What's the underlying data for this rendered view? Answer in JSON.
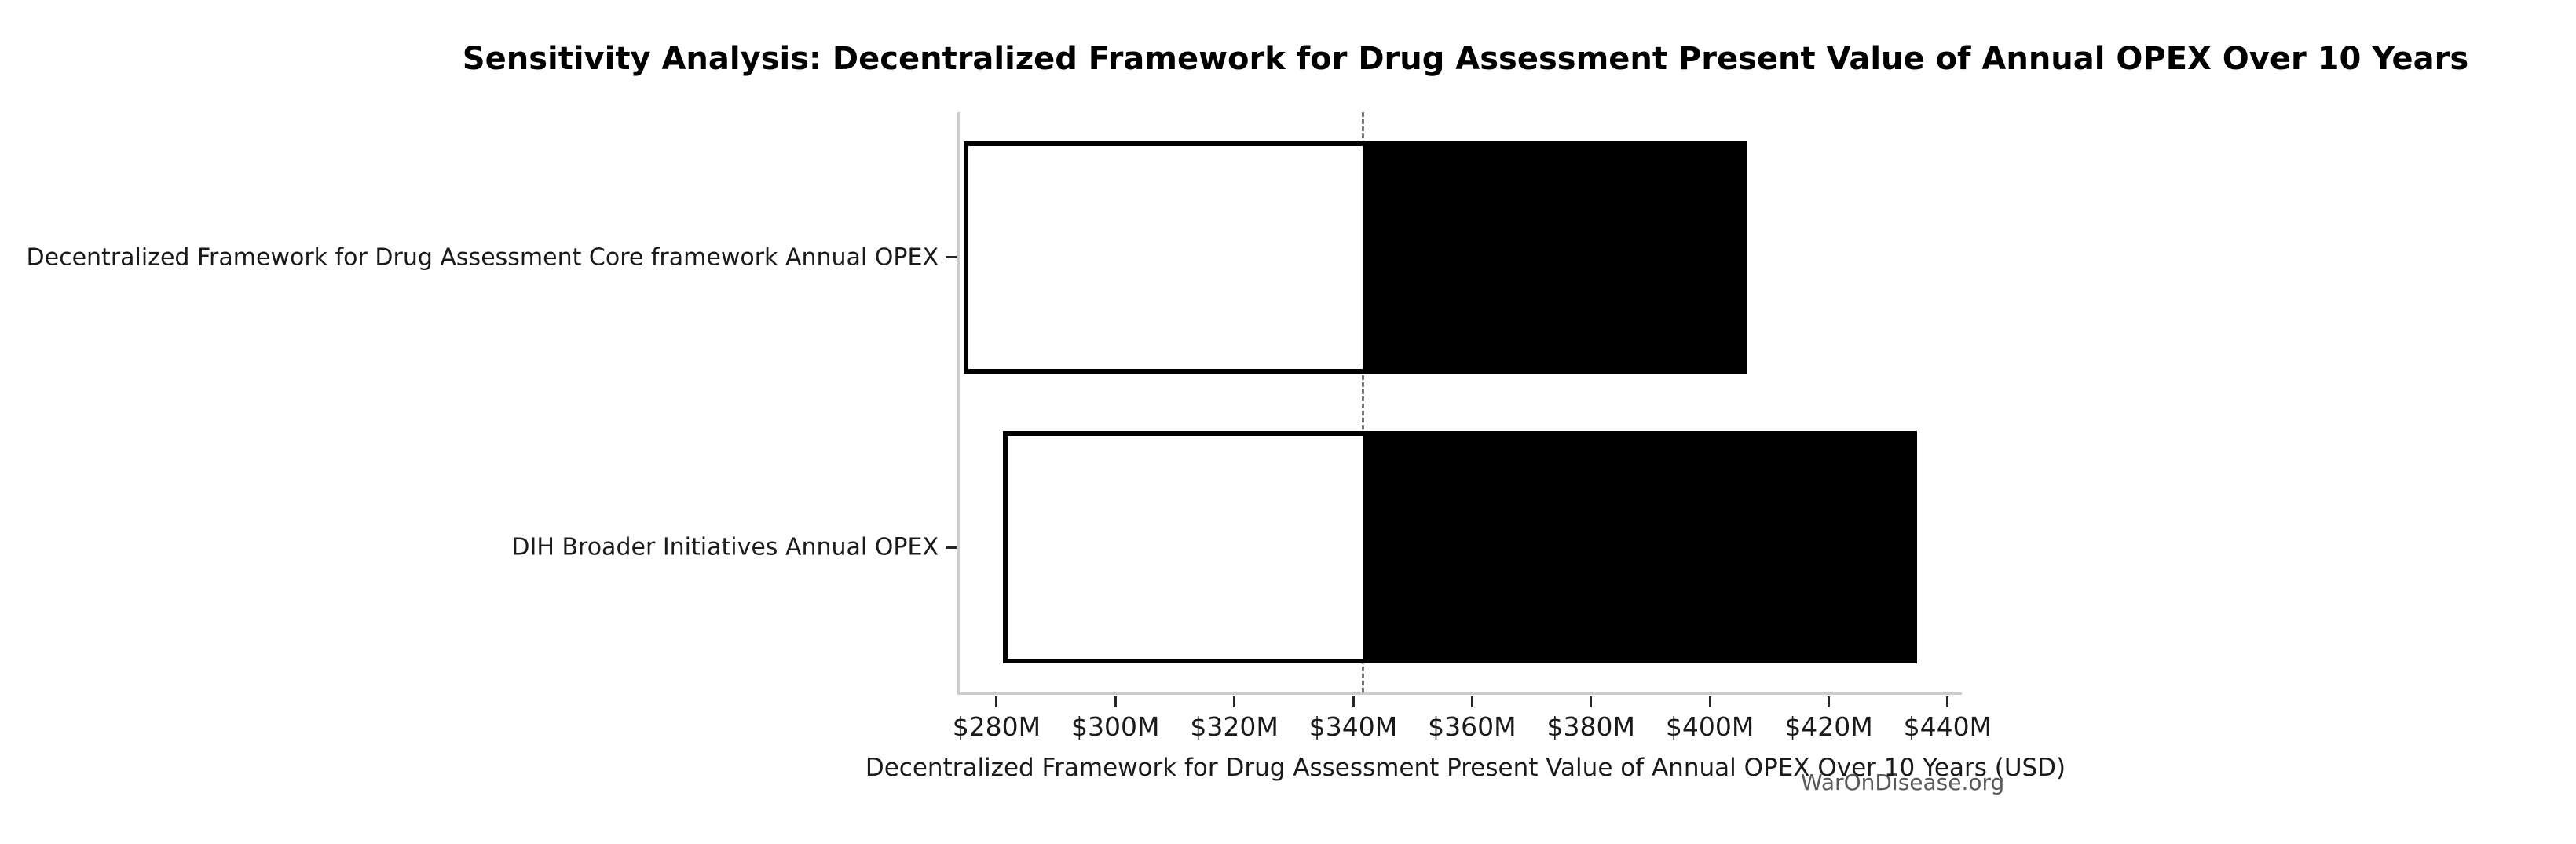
{
  "figure": {
    "watermark": "WarOnDisease.org"
  },
  "chart_data": {
    "type": "bar",
    "subtype": "tornado-sensitivity",
    "orientation": "horizontal",
    "title": "Sensitivity Analysis: Decentralized Framework for Drug Assessment Present Value of Annual OPEX Over 10 Years",
    "xlabel": "Decentralized Framework for Drug Assessment Present Value of Annual OPEX Over 10 Years (USD)",
    "ylabel": "",
    "units": "USD millions",
    "categories": [
      "Decentralized Framework for Drug Assessment Core framework Annual OPEX",
      "DIH Broader Initiatives Annual OPEX"
    ],
    "bars": [
      {
        "category": "Decentralized Framework for Drug Assessment Core framework Annual OPEX",
        "low": 274.5,
        "high": 406.2
      },
      {
        "category": "DIH Broader Initiatives Annual OPEX",
        "low": 281.1,
        "high": 434.9
      }
    ],
    "base_value": 341.6,
    "xlim": [
      273.8,
      442.4
    ],
    "x_ticks": [
      {
        "value": 280,
        "label": "$280M"
      },
      {
        "value": 300,
        "label": "$300M"
      },
      {
        "value": 320,
        "label": "$320M"
      },
      {
        "value": 340,
        "label": "$340M"
      },
      {
        "value": 360,
        "label": "$360M"
      },
      {
        "value": 380,
        "label": "$380M"
      },
      {
        "value": 400,
        "label": "$400M"
      },
      {
        "value": 420,
        "label": "$420M"
      },
      {
        "value": 440,
        "label": "$440M"
      }
    ],
    "grid": false,
    "legend": false,
    "colors": {
      "low_segment_fill": "#ffffff",
      "high_segment_fill": "#000000",
      "bar_border": "#000000",
      "base_line": "#7a7a7a",
      "spine": "#cccccc",
      "tick": "#262626",
      "text": "#1a1a1a",
      "watermark": "#595959"
    }
  }
}
